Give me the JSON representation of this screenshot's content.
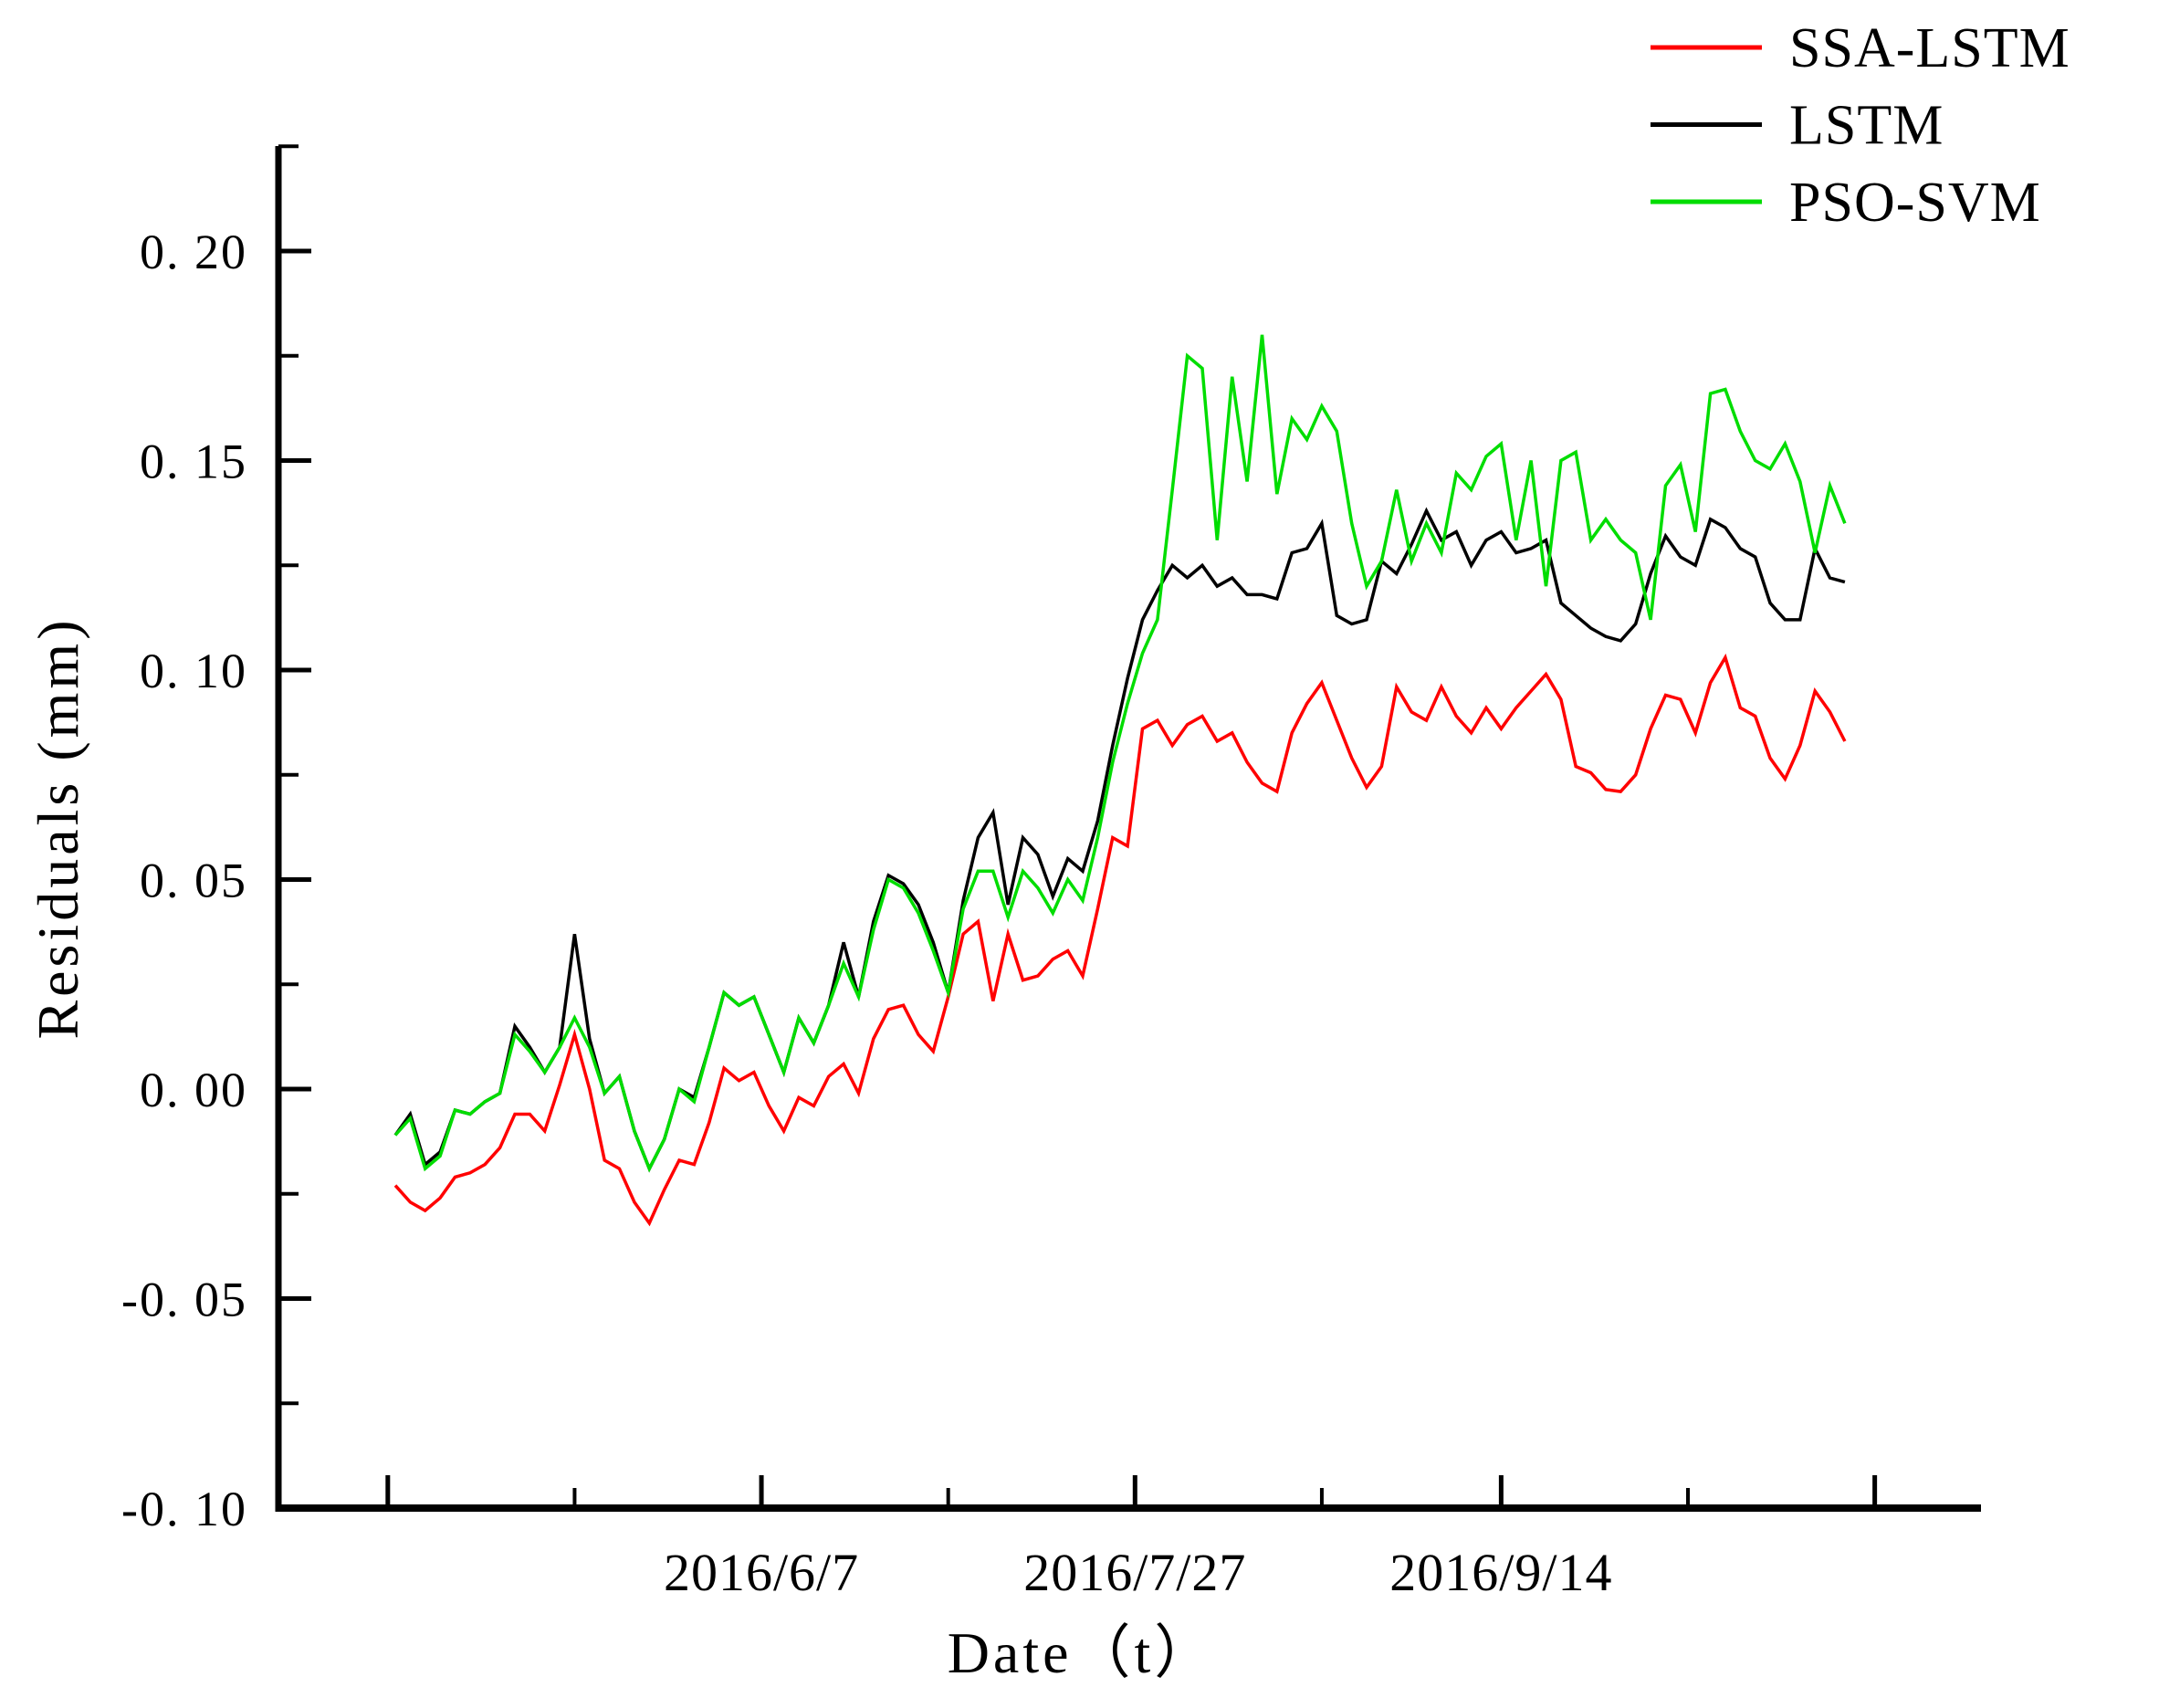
{
  "figure": {
    "background": "#ffffff"
  },
  "chart_data": {
    "type": "line",
    "title": "",
    "xlabel": "Date（t）",
    "ylabel": "Residuals (mm)",
    "grid": false,
    "legend": {
      "position": "top-right",
      "entries": [
        "SSA-LSTM",
        "LSTM",
        "PSO-SVM"
      ]
    },
    "y_axis": {
      "min": -0.1,
      "max": 0.225,
      "major_ticks": [
        {
          "value": 0.2,
          "label": "0. 20"
        },
        {
          "value": 0.15,
          "label": "0. 15"
        },
        {
          "value": 0.1,
          "label": "0. 10"
        },
        {
          "value": 0.05,
          "label": "0. 05"
        },
        {
          "value": 0.0,
          "label": "0. 00"
        },
        {
          "value": -0.05,
          "label": "-0. 05"
        },
        {
          "value": -0.1,
          "label": "-0. 10"
        }
      ],
      "minor_tick_values": [
        0.225,
        0.175,
        0.125,
        0.075,
        0.025,
        -0.025,
        -0.075
      ]
    },
    "x_axis": {
      "major_ticks": [
        {
          "date": "2016/4/18",
          "label": ""
        },
        {
          "date": "2016/6/7",
          "label": "2016/6/7"
        },
        {
          "date": "2016/7/27",
          "label": "2016/7/27"
        },
        {
          "date": "2016/9/14",
          "label": "2016/9/14"
        },
        {
          "date": "2016/11/3",
          "label": ""
        }
      ],
      "minor_tick_dates": [
        "2016/5/13",
        "2016/7/2",
        "2016/8/21",
        "2016/10/9"
      ]
    },
    "x_dates": [
      "2016/4/19",
      "2016/4/21",
      "2016/4/23",
      "2016/4/25",
      "2016/4/27",
      "2016/4/29",
      "2016/5/1",
      "2016/5/3",
      "2016/5/5",
      "2016/5/7",
      "2016/5/9",
      "2016/5/11",
      "2016/5/13",
      "2016/5/15",
      "2016/5/17",
      "2016/5/19",
      "2016/5/21",
      "2016/5/23",
      "2016/5/25",
      "2016/5/27",
      "2016/5/29",
      "2016/5/31",
      "2016/6/2",
      "2016/6/4",
      "2016/6/6",
      "2016/6/8",
      "2016/6/10",
      "2016/6/12",
      "2016/6/14",
      "2016/6/16",
      "2016/6/18",
      "2016/6/20",
      "2016/6/22",
      "2016/6/24",
      "2016/6/26",
      "2016/6/28",
      "2016/6/30",
      "2016/7/2",
      "2016/7/4",
      "2016/7/6",
      "2016/7/8",
      "2016/7/10",
      "2016/7/12",
      "2016/7/14",
      "2016/7/16",
      "2016/7/18",
      "2016/7/20",
      "2016/7/22",
      "2016/7/24",
      "2016/7/26",
      "2016/7/28",
      "2016/7/30",
      "2016/8/1",
      "2016/8/3",
      "2016/8/5",
      "2016/8/7",
      "2016/8/9",
      "2016/8/11",
      "2016/8/13",
      "2016/8/15",
      "2016/8/17",
      "2016/8/19",
      "2016/8/21",
      "2016/8/23",
      "2016/8/25",
      "2016/8/27",
      "2016/8/29",
      "2016/8/31",
      "2016/9/2",
      "2016/9/4",
      "2016/9/6",
      "2016/9/8",
      "2016/9/10",
      "2016/9/12",
      "2016/9/14",
      "2016/9/16",
      "2016/9/18",
      "2016/9/20",
      "2016/9/22",
      "2016/9/24",
      "2016/9/26",
      "2016/9/28",
      "2016/9/30",
      "2016/10/2",
      "2016/10/4",
      "2016/10/6",
      "2016/10/8",
      "2016/10/10",
      "2016/10/12",
      "2016/10/14",
      "2016/10/16",
      "2016/10/18",
      "2016/10/20",
      "2016/10/22",
      "2016/10/24",
      "2016/10/26",
      "2016/10/28",
      "2016/10/30"
    ],
    "series": [
      {
        "name": "SSA-LSTM",
        "color": "#ff0000",
        "values": [
          -0.023,
          -0.027,
          -0.029,
          -0.026,
          -0.021,
          -0.02,
          -0.018,
          -0.014,
          -0.006,
          -0.006,
          -0.01,
          0.001,
          0.013,
          0.0,
          -0.017,
          -0.019,
          -0.027,
          -0.032,
          -0.024,
          -0.017,
          -0.018,
          -0.008,
          0.005,
          0.002,
          0.004,
          -0.004,
          -0.01,
          -0.002,
          -0.004,
          0.003,
          0.006,
          -0.001,
          0.012,
          0.019,
          0.02,
          0.013,
          0.009,
          0.022,
          0.037,
          0.04,
          0.021,
          0.037,
          0.026,
          0.027,
          0.031,
          0.033,
          0.027,
          0.043,
          0.06,
          0.058,
          0.086,
          0.088,
          0.082,
          0.087,
          0.089,
          0.083,
          0.085,
          0.078,
          0.073,
          0.071,
          0.085,
          0.092,
          0.097,
          0.088,
          0.079,
          0.072,
          0.077,
          0.096,
          0.09,
          0.088,
          0.096,
          0.089,
          0.085,
          0.091,
          0.086,
          0.091,
          0.095,
          0.099,
          0.093,
          0.077,
          0.0755,
          0.0715,
          0.071,
          0.075,
          0.086,
          0.094,
          0.093,
          0.085,
          0.097,
          0.103,
          0.091,
          0.089,
          0.079,
          0.074,
          0.082,
          0.095,
          0.09,
          0.083
        ]
      },
      {
        "name": "LSTM",
        "color": "#000000",
        "values": [
          -0.011,
          -0.006,
          -0.018,
          -0.015,
          -0.005,
          -0.006,
          -0.003,
          -0.001,
          0.015,
          0.01,
          0.004,
          0.01,
          0.037,
          0.012,
          -0.001,
          0.003,
          -0.01,
          -0.019,
          -0.012,
          0.0,
          -0.002,
          0.01,
          0.023,
          0.02,
          0.022,
          0.013,
          0.004,
          0.017,
          0.011,
          0.02,
          0.035,
          0.022,
          0.04,
          0.051,
          0.049,
          0.044,
          0.035,
          0.023,
          0.045,
          0.06,
          0.066,
          0.044,
          0.06,
          0.056,
          0.046,
          0.055,
          0.052,
          0.064,
          0.082,
          0.098,
          0.112,
          0.119,
          0.125,
          0.122,
          0.125,
          0.12,
          0.122,
          0.118,
          0.118,
          0.117,
          0.128,
          0.129,
          0.135,
          0.113,
          0.111,
          0.112,
          0.126,
          0.123,
          0.13,
          0.138,
          0.131,
          0.133,
          0.125,
          0.131,
          0.133,
          0.128,
          0.129,
          0.131,
          0.116,
          0.113,
          0.11,
          0.108,
          0.107,
          0.111,
          0.123,
          0.132,
          0.127,
          0.125,
          0.136,
          0.134,
          0.129,
          0.127,
          0.116,
          0.112,
          0.112,
          0.129,
          0.122,
          0.121
        ]
      },
      {
        "name": "PSO-SVM",
        "color": "#00dd00",
        "values": [
          -0.011,
          -0.007,
          -0.019,
          -0.016,
          -0.005,
          -0.006,
          -0.003,
          -0.001,
          0.013,
          0.009,
          0.004,
          0.01,
          0.017,
          0.01,
          -0.001,
          0.003,
          -0.01,
          -0.019,
          -0.012,
          0.0,
          -0.003,
          0.01,
          0.023,
          0.02,
          0.022,
          0.013,
          0.004,
          0.017,
          0.011,
          0.02,
          0.03,
          0.022,
          0.038,
          0.05,
          0.048,
          0.042,
          0.033,
          0.023,
          0.043,
          0.052,
          0.052,
          0.041,
          0.052,
          0.048,
          0.042,
          0.05,
          0.045,
          0.06,
          0.078,
          0.092,
          0.104,
          0.112,
          0.143,
          0.175,
          0.172,
          0.131,
          0.17,
          0.145,
          0.18,
          0.142,
          0.16,
          0.155,
          0.163,
          0.157,
          0.135,
          0.12,
          0.126,
          0.143,
          0.126,
          0.135,
          0.128,
          0.147,
          0.143,
          0.151,
          0.154,
          0.131,
          0.15,
          0.12,
          0.15,
          0.152,
          0.131,
          0.136,
          0.131,
          0.128,
          0.112,
          0.144,
          0.149,
          0.133,
          0.166,
          0.167,
          0.157,
          0.15,
          0.148,
          0.154,
          0.145,
          0.128,
          0.144,
          0.135
        ]
      }
    ]
  }
}
